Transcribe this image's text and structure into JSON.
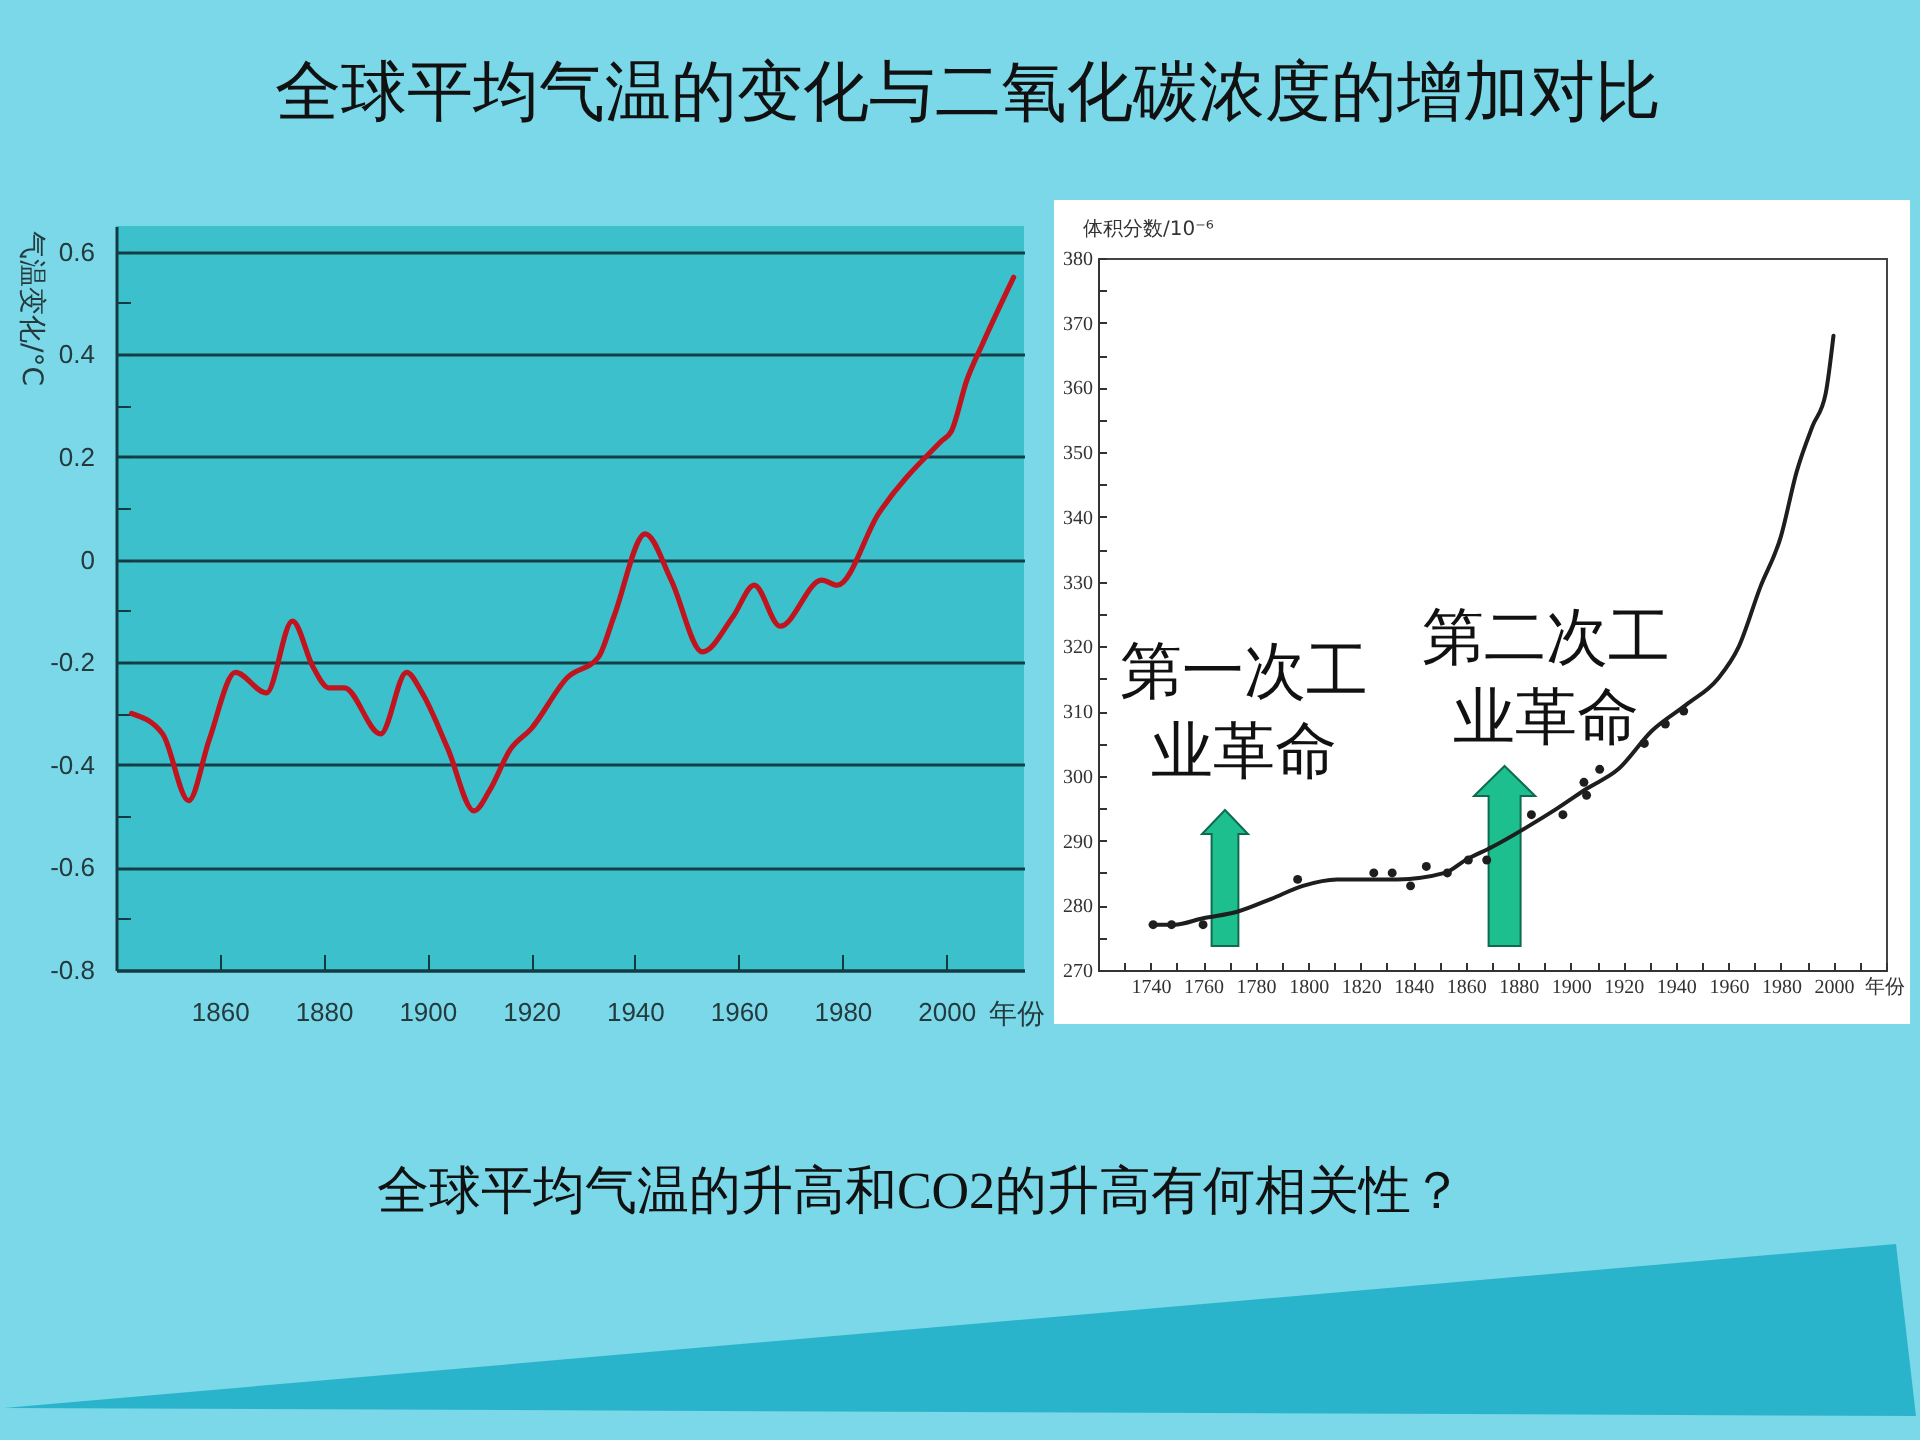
{
  "chart_data": [
    {
      "type": "other",
      "title": "全球平均气温的变化与二氧化碳浓度的增加对比"
    },
    {
      "type": "line",
      "xlabel": "年份",
      "ylabel": "气温变化/°C",
      "xlim": [
        1840,
        2015
      ],
      "xticks": [
        1860,
        1880,
        1900,
        1920,
        1940,
        1960,
        1980,
        2000
      ],
      "ylim": [
        -0.8,
        0.65
      ],
      "yticks": [
        -0.8,
        {
          "value": -0.7,
          "label": null
        },
        -0.6,
        {
          "value": -0.5,
          "label": null
        },
        -0.4,
        {
          "value": -0.3,
          "label": null
        },
        -0.2,
        {
          "value": -0.1,
          "label": null
        },
        0,
        {
          "value": 0.1,
          "label": null
        },
        0.2,
        {
          "value": 0.3,
          "label": null
        },
        0.4,
        {
          "value": 0.5,
          "label": null
        },
        0.6
      ],
      "grid": "y",
      "x": [
        1843,
        1849,
        1854,
        1858,
        1863,
        1869,
        1874,
        1878,
        1881,
        1884,
        1891,
        1896,
        1899,
        1904,
        1909,
        1912,
        1916,
        1920,
        1927,
        1933,
        1936,
        1942,
        1947,
        1953,
        1959,
        1963,
        1968,
        1976,
        1979,
        1987,
        1999,
        2001,
        2004,
        2007,
        2013
      ],
      "series": [
        {
          "color": "#c0141e",
          "values": [
            -0.3,
            -0.34,
            -0.47,
            -0.35,
            -0.22,
            -0.26,
            -0.12,
            -0.21,
            -0.25,
            -0.25,
            -0.34,
            -0.22,
            -0.26,
            -0.37,
            -0.49,
            -0.45,
            -0.37,
            -0.33,
            -0.23,
            -0.19,
            -0.11,
            0.05,
            -0.04,
            -0.18,
            -0.11,
            -0.05,
            -0.13,
            -0.04,
            -0.05,
            0.09,
            0.23,
            0.25,
            0.35,
            0.42,
            0.55
          ]
        }
      ]
    },
    {
      "type": "line",
      "xlabel": "年份",
      "ylabel": "体积分数/10⁻⁶",
      "xlim": [
        1720,
        2020
      ],
      "xticks": [
        {
          "value": 1720,
          "label": null
        },
        {
          "value": 1730,
          "label": null
        },
        1740,
        {
          "value": 1750,
          "label": null
        },
        1760,
        {
          "value": 1770,
          "label": null
        },
        1780,
        {
          "value": 1790,
          "label": null
        },
        1800,
        {
          "value": 1810,
          "label": null
        },
        1820,
        {
          "value": 1830,
          "label": null
        },
        1840,
        {
          "value": 1850,
          "label": null
        },
        1860,
        {
          "value": 1870,
          "label": null
        },
        1880,
        {
          "value": 1890,
          "label": null
        },
        1900,
        {
          "value": 1910,
          "label": null
        },
        1920,
        {
          "value": 1930,
          "label": null
        },
        1940,
        {
          "value": 1950,
          "label": null
        },
        1960,
        {
          "value": 1970,
          "label": null
        },
        1980,
        {
          "value": 1990,
          "label": null
        },
        2000,
        {
          "value": 2010,
          "label": null
        },
        {
          "value": 2020,
          "label": null
        }
      ],
      "ylim": [
        270,
        380
      ],
      "yticks": [
        270,
        {
          "value": 275,
          "label": null
        },
        280,
        {
          "value": 285,
          "label": null
        },
        290,
        {
          "value": 295,
          "label": null
        },
        300,
        {
          "value": 305,
          "label": null
        },
        310,
        {
          "value": 315,
          "label": null
        },
        320,
        {
          "value": 325,
          "label": null
        },
        330,
        {
          "value": 335,
          "label": null
        },
        340,
        {
          "value": 345,
          "label": null
        },
        350,
        {
          "value": 355,
          "label": null
        },
        360,
        {
          "value": 365,
          "label": null
        },
        370,
        {
          "value": 375,
          "label": null
        },
        380
      ],
      "series": [
        {
          "color": "#1e1e1e",
          "x": [
            1740,
            1749,
            1760,
            1773,
            1786,
            1798,
            1811,
            1821,
            1834,
            1852,
            1860,
            1870,
            1883,
            1895,
            1906,
            1918,
            1931,
            1944,
            1956,
            1964,
            1972,
            1980,
            1986,
            1992,
            1997,
            2000
          ],
          "values": [
            277,
            277,
            278,
            279,
            281,
            283,
            284,
            284,
            284,
            285,
            287,
            289,
            292,
            295,
            298,
            301,
            307,
            311,
            315,
            320,
            329,
            337,
            347,
            354,
            359,
            368
          ]
        },
        {
          "type": "scatter",
          "marker": "circle",
          "color": "#1e1e1e",
          "x": [
            1741,
            1748,
            1760,
            1796,
            1825,
            1832,
            1839,
            1845,
            1853,
            1861,
            1868,
            1885,
            1897,
            1905,
            1906,
            1911,
            1928,
            1936,
            1943
          ],
          "values": [
            277,
            277,
            277,
            284,
            285,
            285,
            283,
            286,
            285,
            287,
            287,
            294,
            294,
            299,
            297,
            301,
            305,
            308,
            310
          ]
        }
      ],
      "annotations": [
        "第一次工业革命",
        "第二次工业革命"
      ]
    },
    {
      "type": "other",
      "annotations": [
        "全球平均气温的升高和CO2的升高有何相关性？"
      ]
    }
  ]
}
